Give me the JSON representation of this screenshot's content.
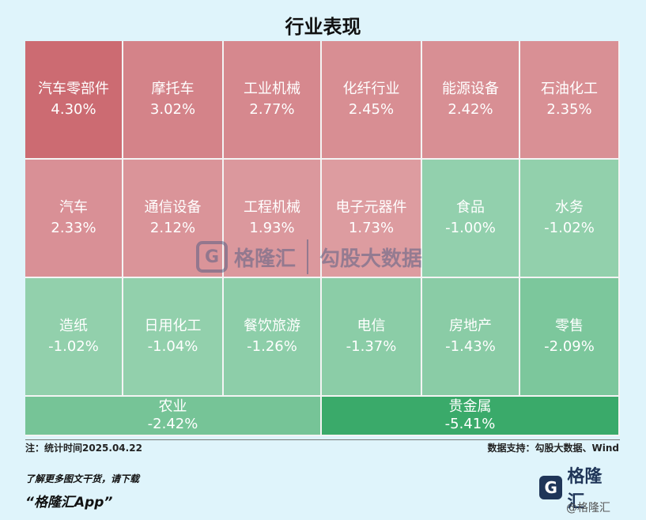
{
  "title": "行业表现",
  "chart_data": {
    "type": "heatmap",
    "title": "行业表现",
    "unit": "%",
    "cells": [
      {
        "name": "汽车零部件",
        "value": 4.3,
        "label": "4.30%"
      },
      {
        "name": "摩托车",
        "value": 3.02,
        "label": "3.02%"
      },
      {
        "name": "工业机械",
        "value": 2.77,
        "label": "2.77%"
      },
      {
        "name": "化纤行业",
        "value": 2.45,
        "label": "2.45%"
      },
      {
        "name": "能源设备",
        "value": 2.42,
        "label": "2.42%"
      },
      {
        "name": "石油化工",
        "value": 2.35,
        "label": "2.35%"
      },
      {
        "name": "汽车",
        "value": 2.33,
        "label": "2.33%"
      },
      {
        "name": "通信设备",
        "value": 2.12,
        "label": "2.12%"
      },
      {
        "name": "工程机械",
        "value": 1.93,
        "label": "1.93%"
      },
      {
        "name": "电子元器件",
        "value": 1.73,
        "label": "1.73%"
      },
      {
        "name": "食品",
        "value": -1.0,
        "label": "-1.00%"
      },
      {
        "name": "水务",
        "value": -1.02,
        "label": "-1.02%"
      },
      {
        "name": "造纸",
        "value": -1.02,
        "label": "-1.02%"
      },
      {
        "name": "日用化工",
        "value": -1.04,
        "label": "-1.04%"
      },
      {
        "name": "餐饮旅游",
        "value": -1.26,
        "label": "-1.26%"
      },
      {
        "name": "电信",
        "value": -1.37,
        "label": "-1.37%"
      },
      {
        "name": "房地产",
        "value": -1.43,
        "label": "-1.43%"
      },
      {
        "name": "零售",
        "value": -2.09,
        "label": "-2.09%"
      },
      {
        "name": "农业",
        "value": -2.42,
        "label": "-2.42%"
      },
      {
        "name": "贵金属",
        "value": -5.41,
        "label": "-5.41%"
      }
    ],
    "colors": {
      "positive": "#cc6b72",
      "negative": "#3aaa6a"
    }
  },
  "note": "注：统计时间2025.04.22",
  "source": "数据支持：勾股大数据、Wind",
  "promo": {
    "line1": "了解更多图文干货，请下载",
    "line2": "“格隆汇App”"
  },
  "logo": {
    "mark": "G",
    "text": "格隆汇"
  },
  "weibo_tag": "@格隆汇",
  "watermark": {
    "mark": "G",
    "brand1": "格隆汇",
    "brand2": "勾股大数据"
  }
}
